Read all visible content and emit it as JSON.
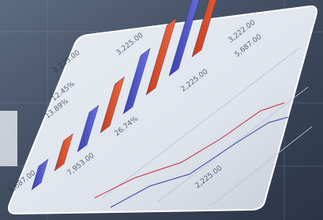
{
  "labels": [
    {
      "text": "7,953.00"
    },
    {
      "text": "26.74%"
    },
    {
      "text": "2,225.00"
    },
    {
      "text": "3,222.00"
    },
    {
      "text": "5,687.00"
    },
    {
      "text": "5,687.00"
    },
    {
      "text": "2,225.00"
    },
    {
      "text": "13.89%"
    },
    {
      "text": "12.45%"
    },
    {
      "text": "3,225.00"
    },
    {
      "text": "2,225.00"
    }
  ]
}
